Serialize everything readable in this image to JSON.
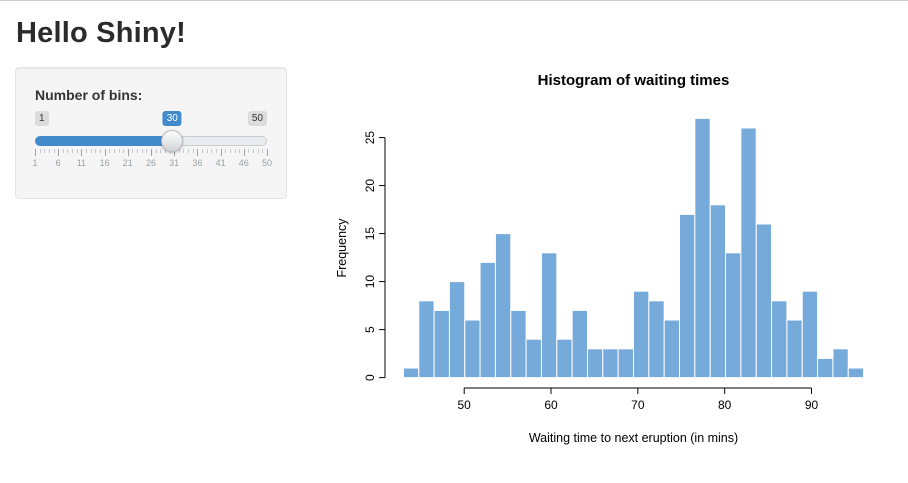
{
  "page": {
    "title": "Hello Shiny!"
  },
  "sidebar": {
    "bins_label": "Number of bins:",
    "slider": {
      "min": 1,
      "max": 50,
      "value": 30,
      "min_label": "1",
      "max_label": "50",
      "value_label": "30",
      "grid_labels": [
        "1",
        "6",
        "11",
        "16",
        "21",
        "26",
        "31",
        "36",
        "41",
        "46",
        "50"
      ],
      "accent_color": "#428bca"
    }
  },
  "chart_data": {
    "type": "bar",
    "subtype": "histogram",
    "title": "Histogram of waiting times",
    "xlabel": "Waiting time to next eruption (in mins)",
    "ylabel": "Frequency",
    "bin_start": 43,
    "bin_end": 96,
    "bins": [
      1,
      8,
      7,
      10,
      6,
      12,
      15,
      7,
      4,
      13,
      4,
      7,
      3,
      3,
      3,
      9,
      8,
      6,
      17,
      27,
      18,
      13,
      26,
      16,
      8,
      6,
      9,
      2,
      3,
      1
    ],
    "x_ticks": [
      50,
      60,
      70,
      80,
      90
    ],
    "y_ticks": [
      0,
      5,
      10,
      15,
      20,
      25
    ],
    "ylim": [
      0,
      27
    ],
    "bar_color": "#75AADB",
    "bar_border": "#FFFFFF",
    "grid": false,
    "legend": "none"
  }
}
